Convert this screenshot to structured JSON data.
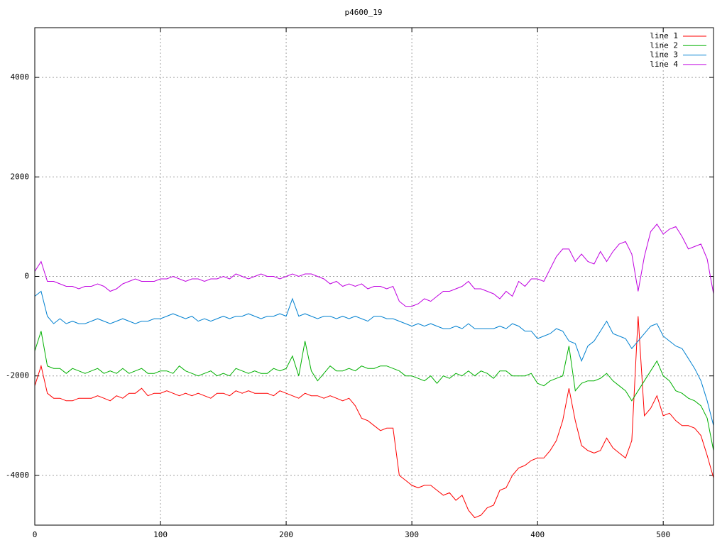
{
  "chart_data": {
    "type": "line",
    "title": "p4600_19",
    "x": [
      0,
      5,
      10,
      15,
      20,
      25,
      30,
      35,
      40,
      45,
      50,
      55,
      60,
      65,
      70,
      75,
      80,
      85,
      90,
      95,
      100,
      105,
      110,
      115,
      120,
      125,
      130,
      135,
      140,
      145,
      150,
      155,
      160,
      165,
      170,
      175,
      180,
      185,
      190,
      195,
      200,
      205,
      210,
      215,
      220,
      225,
      230,
      235,
      240,
      245,
      250,
      255,
      260,
      265,
      270,
      275,
      280,
      285,
      290,
      295,
      300,
      305,
      310,
      315,
      320,
      325,
      330,
      335,
      340,
      345,
      350,
      355,
      360,
      365,
      370,
      375,
      380,
      385,
      390,
      395,
      400,
      405,
      410,
      415,
      420,
      425,
      430,
      435,
      440,
      445,
      450,
      455,
      460,
      465,
      470,
      475,
      480,
      485,
      490,
      495,
      500,
      505,
      510,
      515,
      520,
      525,
      530,
      535,
      540
    ],
    "series": [
      {
        "name": "line 1",
        "color": "#ff0000",
        "values": [
          -2200,
          -1800,
          -2350,
          -2450,
          -2450,
          -2500,
          -2500,
          -2450,
          -2450,
          -2450,
          -2400,
          -2450,
          -2500,
          -2400,
          -2450,
          -2350,
          -2350,
          -2250,
          -2400,
          -2350,
          -2350,
          -2300,
          -2350,
          -2400,
          -2350,
          -2400,
          -2350,
          -2400,
          -2450,
          -2350,
          -2350,
          -2400,
          -2300,
          -2350,
          -2300,
          -2350,
          -2350,
          -2350,
          -2400,
          -2300,
          -2350,
          -2400,
          -2450,
          -2350,
          -2400,
          -2400,
          -2450,
          -2400,
          -2450,
          -2500,
          -2450,
          -2600,
          -2850,
          -2900,
          -3000,
          -3100,
          -3050,
          -3050,
          -4000,
          -4100,
          -4200,
          -4250,
          -4200,
          -4200,
          -4300,
          -4400,
          -4350,
          -4500,
          -4400,
          -4700,
          -4850,
          -4800,
          -4650,
          -4600,
          -4300,
          -4250,
          -4000,
          -3850,
          -3800,
          -3700,
          -3650,
          -3650,
          -3500,
          -3300,
          -2900,
          -2250,
          -2900,
          -3400,
          -3500,
          -3550,
          -3500,
          -3250,
          -3450,
          -3550,
          -3650,
          -3300,
          -800,
          -2800,
          -2650,
          -2400,
          -2800,
          -2750,
          -2900,
          -3000,
          -3000,
          -3050,
          -3200,
          -3600,
          -4050
        ]
      },
      {
        "name": "line 2",
        "color": "#00b000",
        "values": [
          -1500,
          -1100,
          -1800,
          -1850,
          -1850,
          -1950,
          -1850,
          -1900,
          -1950,
          -1900,
          -1850,
          -1950,
          -1900,
          -1950,
          -1850,
          -1950,
          -1900,
          -1850,
          -1950,
          -1950,
          -1900,
          -1900,
          -1950,
          -1800,
          -1900,
          -1950,
          -2000,
          -1950,
          -1900,
          -2000,
          -1950,
          -2000,
          -1850,
          -1900,
          -1950,
          -1900,
          -1950,
          -1950,
          -1850,
          -1900,
          -1850,
          -1600,
          -2000,
          -1300,
          -1900,
          -2100,
          -1950,
          -1800,
          -1900,
          -1900,
          -1850,
          -1900,
          -1800,
          -1850,
          -1850,
          -1800,
          -1800,
          -1850,
          -1900,
          -2000,
          -2000,
          -2050,
          -2100,
          -2000,
          -2150,
          -2000,
          -2050,
          -1950,
          -2000,
          -1900,
          -2000,
          -1900,
          -1950,
          -2050,
          -1900,
          -1900,
          -2000,
          -2000,
          -2000,
          -1950,
          -2150,
          -2200,
          -2100,
          -2050,
          -2000,
          -1400,
          -2300,
          -2150,
          -2100,
          -2100,
          -2050,
          -1950,
          -2100,
          -2200,
          -2300,
          -2500,
          -2300,
          -2100,
          -1900,
          -1700,
          -2000,
          -2100,
          -2300,
          -2350,
          -2450,
          -2500,
          -2600,
          -2850,
          -3500
        ]
      },
      {
        "name": "line 3",
        "color": "#0080d0",
        "values": [
          -400,
          -300,
          -800,
          -950,
          -850,
          -950,
          -900,
          -950,
          -950,
          -900,
          -850,
          -900,
          -950,
          -900,
          -850,
          -900,
          -950,
          -900,
          -900,
          -850,
          -850,
          -800,
          -750,
          -800,
          -850,
          -800,
          -900,
          -850,
          -900,
          -850,
          -800,
          -850,
          -800,
          -800,
          -750,
          -800,
          -850,
          -800,
          -800,
          -750,
          -800,
          -450,
          -800,
          -750,
          -800,
          -850,
          -800,
          -800,
          -850,
          -800,
          -850,
          -800,
          -850,
          -900,
          -800,
          -800,
          -850,
          -850,
          -900,
          -950,
          -1000,
          -950,
          -1000,
          -950,
          -1000,
          -1050,
          -1050,
          -1000,
          -1050,
          -950,
          -1050,
          -1050,
          -1050,
          -1050,
          -1000,
          -1050,
          -950,
          -1000,
          -1100,
          -1100,
          -1250,
          -1200,
          -1150,
          -1050,
          -1100,
          -1300,
          -1350,
          -1700,
          -1400,
          -1300,
          -1100,
          -900,
          -1150,
          -1200,
          -1250,
          -1450,
          -1300,
          -1150,
          -1000,
          -950,
          -1200,
          -1300,
          -1400,
          -1450,
          -1650,
          -1850,
          -2100,
          -2500,
          -3000
        ]
      },
      {
        "name": "line 4",
        "color": "#c000e0",
        "values": [
          100,
          300,
          -100,
          -100,
          -150,
          -200,
          -200,
          -250,
          -200,
          -200,
          -150,
          -200,
          -300,
          -250,
          -150,
          -100,
          -50,
          -100,
          -100,
          -100,
          -50,
          -50,
          0,
          -50,
          -100,
          -50,
          -50,
          -100,
          -50,
          -50,
          0,
          -50,
          50,
          0,
          -50,
          0,
          50,
          0,
          0,
          -50,
          0,
          50,
          0,
          50,
          50,
          0,
          -50,
          -150,
          -100,
          -200,
          -150,
          -200,
          -150,
          -250,
          -200,
          -200,
          -250,
          -200,
          -500,
          -600,
          -600,
          -550,
          -450,
          -500,
          -400,
          -300,
          -300,
          -250,
          -200,
          -100,
          -250,
          -250,
          -300,
          -350,
          -450,
          -300,
          -400,
          -100,
          -200,
          -50,
          -50,
          -100,
          150,
          400,
          550,
          550,
          300,
          450,
          300,
          250,
          500,
          300,
          500,
          650,
          700,
          450,
          -300,
          400,
          900,
          1050,
          850,
          950,
          1000,
          800,
          550,
          600,
          650,
          350,
          -350
        ]
      }
    ],
    "xlim": [
      0,
      540
    ],
    "xticks": [
      0,
      100,
      200,
      300,
      400,
      500
    ],
    "ylim": [
      -5000,
      5000
    ],
    "yticks": [
      -4000,
      -2000,
      0,
      2000,
      4000
    ],
    "grid": true,
    "legend": "upper right"
  }
}
